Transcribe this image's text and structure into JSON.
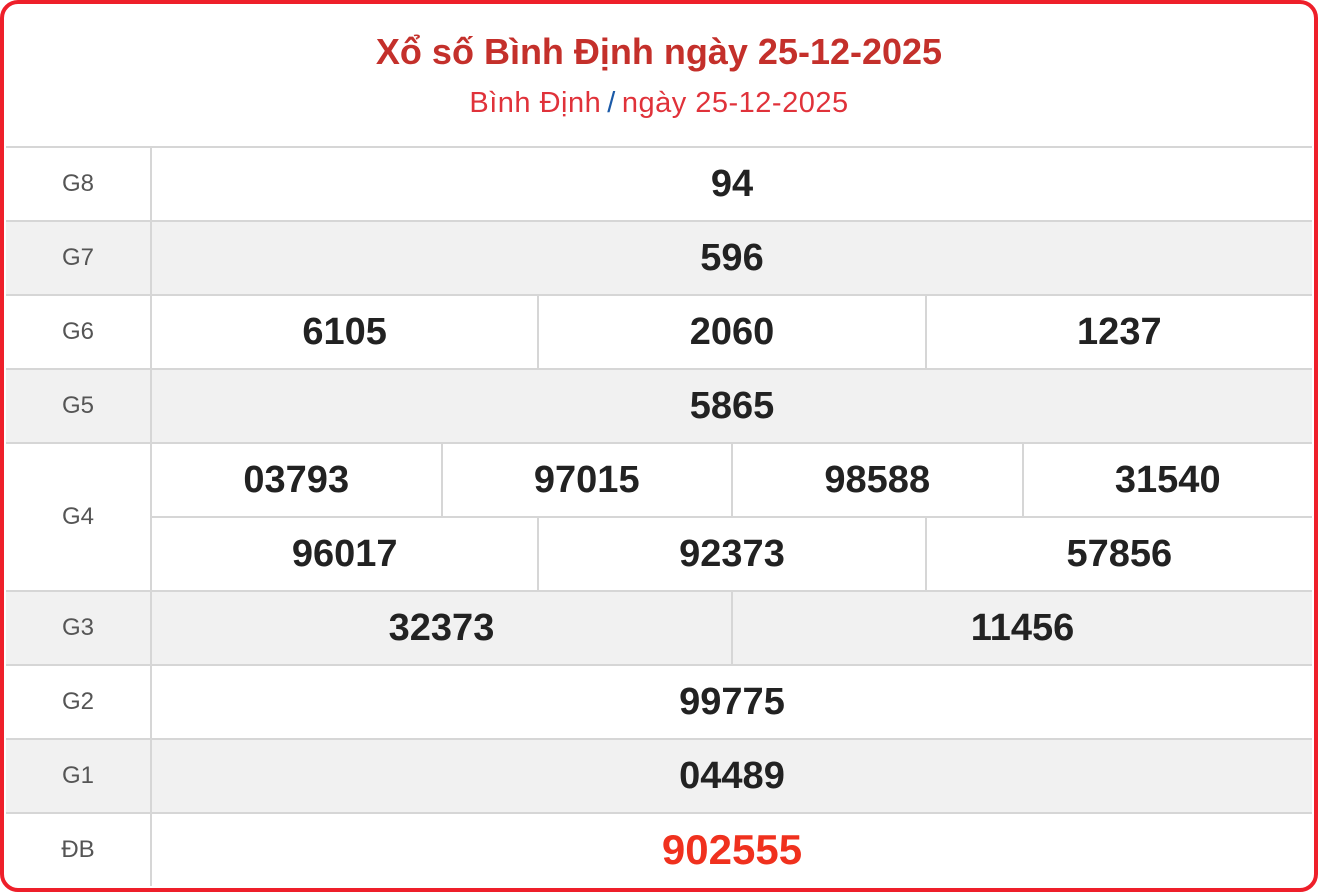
{
  "header": {
    "title": "Xổ số Bình Định ngày 25-12-2025",
    "breadcrumb": {
      "province": "Bình Định",
      "separator": "/",
      "date": "ngày 25-12-2025"
    }
  },
  "colors": {
    "border": "#ee1f2a",
    "title": "#c4302b",
    "special": "#f0311e"
  },
  "prizes": [
    {
      "label": "G8",
      "numbers": [
        "94"
      ]
    },
    {
      "label": "G7",
      "numbers": [
        "596"
      ]
    },
    {
      "label": "G6",
      "numbers": [
        "6105",
        "2060",
        "1237"
      ]
    },
    {
      "label": "G5",
      "numbers": [
        "5865"
      ]
    },
    {
      "label": "G4",
      "numbers": [
        "03793",
        "97015",
        "98588",
        "31540",
        "96017",
        "92373",
        "57856"
      ]
    },
    {
      "label": "G3",
      "numbers": [
        "32373",
        "11456"
      ]
    },
    {
      "label": "G2",
      "numbers": [
        "99775"
      ]
    },
    {
      "label": "G1",
      "numbers": [
        "04489"
      ]
    },
    {
      "label": "ĐB",
      "numbers": [
        "902555"
      ]
    }
  ]
}
